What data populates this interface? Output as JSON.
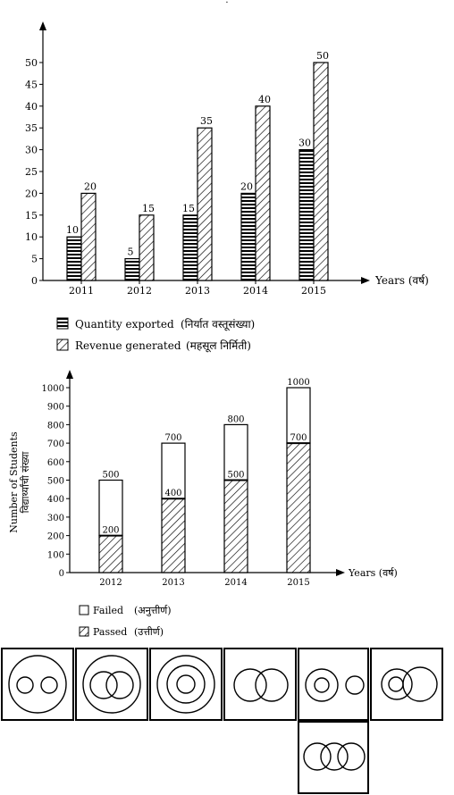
{
  "top_mark": "·",
  "chart_data": [
    {
      "type": "bar",
      "categories": [
        "2011",
        "2012",
        "2013",
        "2014",
        "2015"
      ],
      "series": [
        {
          "name": "Quantity exported (निर्यात वस्तूसंख्या)",
          "values": [
            10,
            5,
            15,
            20,
            30
          ],
          "pattern": "horizontal-stripes"
        },
        {
          "name": "Revenue generated (महसूल निर्मिती)",
          "values": [
            20,
            15,
            35,
            40,
            50
          ],
          "pattern": "diagonal-hatch"
        }
      ],
      "title": "",
      "xlabel": "Years (वर्ष)",
      "ylabel": "",
      "ylim": [
        0,
        50
      ],
      "yticks": [
        0,
        5,
        10,
        15,
        20,
        25,
        30,
        35,
        40,
        45,
        50
      ],
      "data_labels": true,
      "grid": false,
      "legend": "below"
    },
    {
      "type": "bar",
      "stacked": true,
      "categories": [
        "2012",
        "2013",
        "2014",
        "2015"
      ],
      "series": [
        {
          "name": "Passed (उत्तीर्ण)",
          "values": [
            200,
            400,
            500,
            700
          ],
          "pattern": "diagonal-hatch"
        },
        {
          "name": "Failed (अनुत्तीर्ण)",
          "values": [
            300,
            300,
            300,
            300
          ],
          "pattern": "blank"
        }
      ],
      "totals": [
        500,
        700,
        800,
        1000
      ],
      "title": "",
      "xlabel": "Years (वर्ष)",
      "ylabel": "Number of Students / विद्यार्थ्यांची संख्या",
      "ylim": [
        0,
        1000
      ],
      "yticks": [
        0,
        100,
        200,
        300,
        400,
        500,
        600,
        700,
        800,
        900,
        1000
      ],
      "data_labels": true,
      "grid": false,
      "legend": "below"
    }
  ],
  "chart1": {
    "xlabel": "Years (वर्ष)",
    "legend": [
      {
        "label": "Quantity exported",
        "label_local": "(निर्यात वस्तूसंख्या)"
      },
      {
        "label": "Revenue generated",
        "label_local": "(महसूल निर्मिती)"
      }
    ]
  },
  "chart2": {
    "xlabel": "Years (वर्ष)",
    "ylabel_en": "Number of Students",
    "ylabel_local": "विद्यार्थ्यांची संख्या",
    "legend": [
      {
        "label": "Failed",
        "label_local": "(अनुत्तीर्ण)"
      },
      {
        "label": "Passed",
        "label_local": "(उत्तीर्ण)"
      }
    ]
  },
  "venn_options": [
    {
      "id": "venn-option-1",
      "circles": "two-separate-inside-large"
    },
    {
      "id": "venn-option-2",
      "circles": "two-overlapping-inside-large"
    },
    {
      "id": "venn-option-3",
      "circles": "three-concentric"
    },
    {
      "id": "venn-option-4",
      "circles": "two-overlapping"
    },
    {
      "id": "venn-option-5",
      "circles": "concentric-pair-plus-separate"
    },
    {
      "id": "venn-option-6",
      "circles": "small-inside-overlapping-pair"
    },
    {
      "id": "venn-option-7",
      "circles": "three-overlapping-chain"
    }
  ]
}
